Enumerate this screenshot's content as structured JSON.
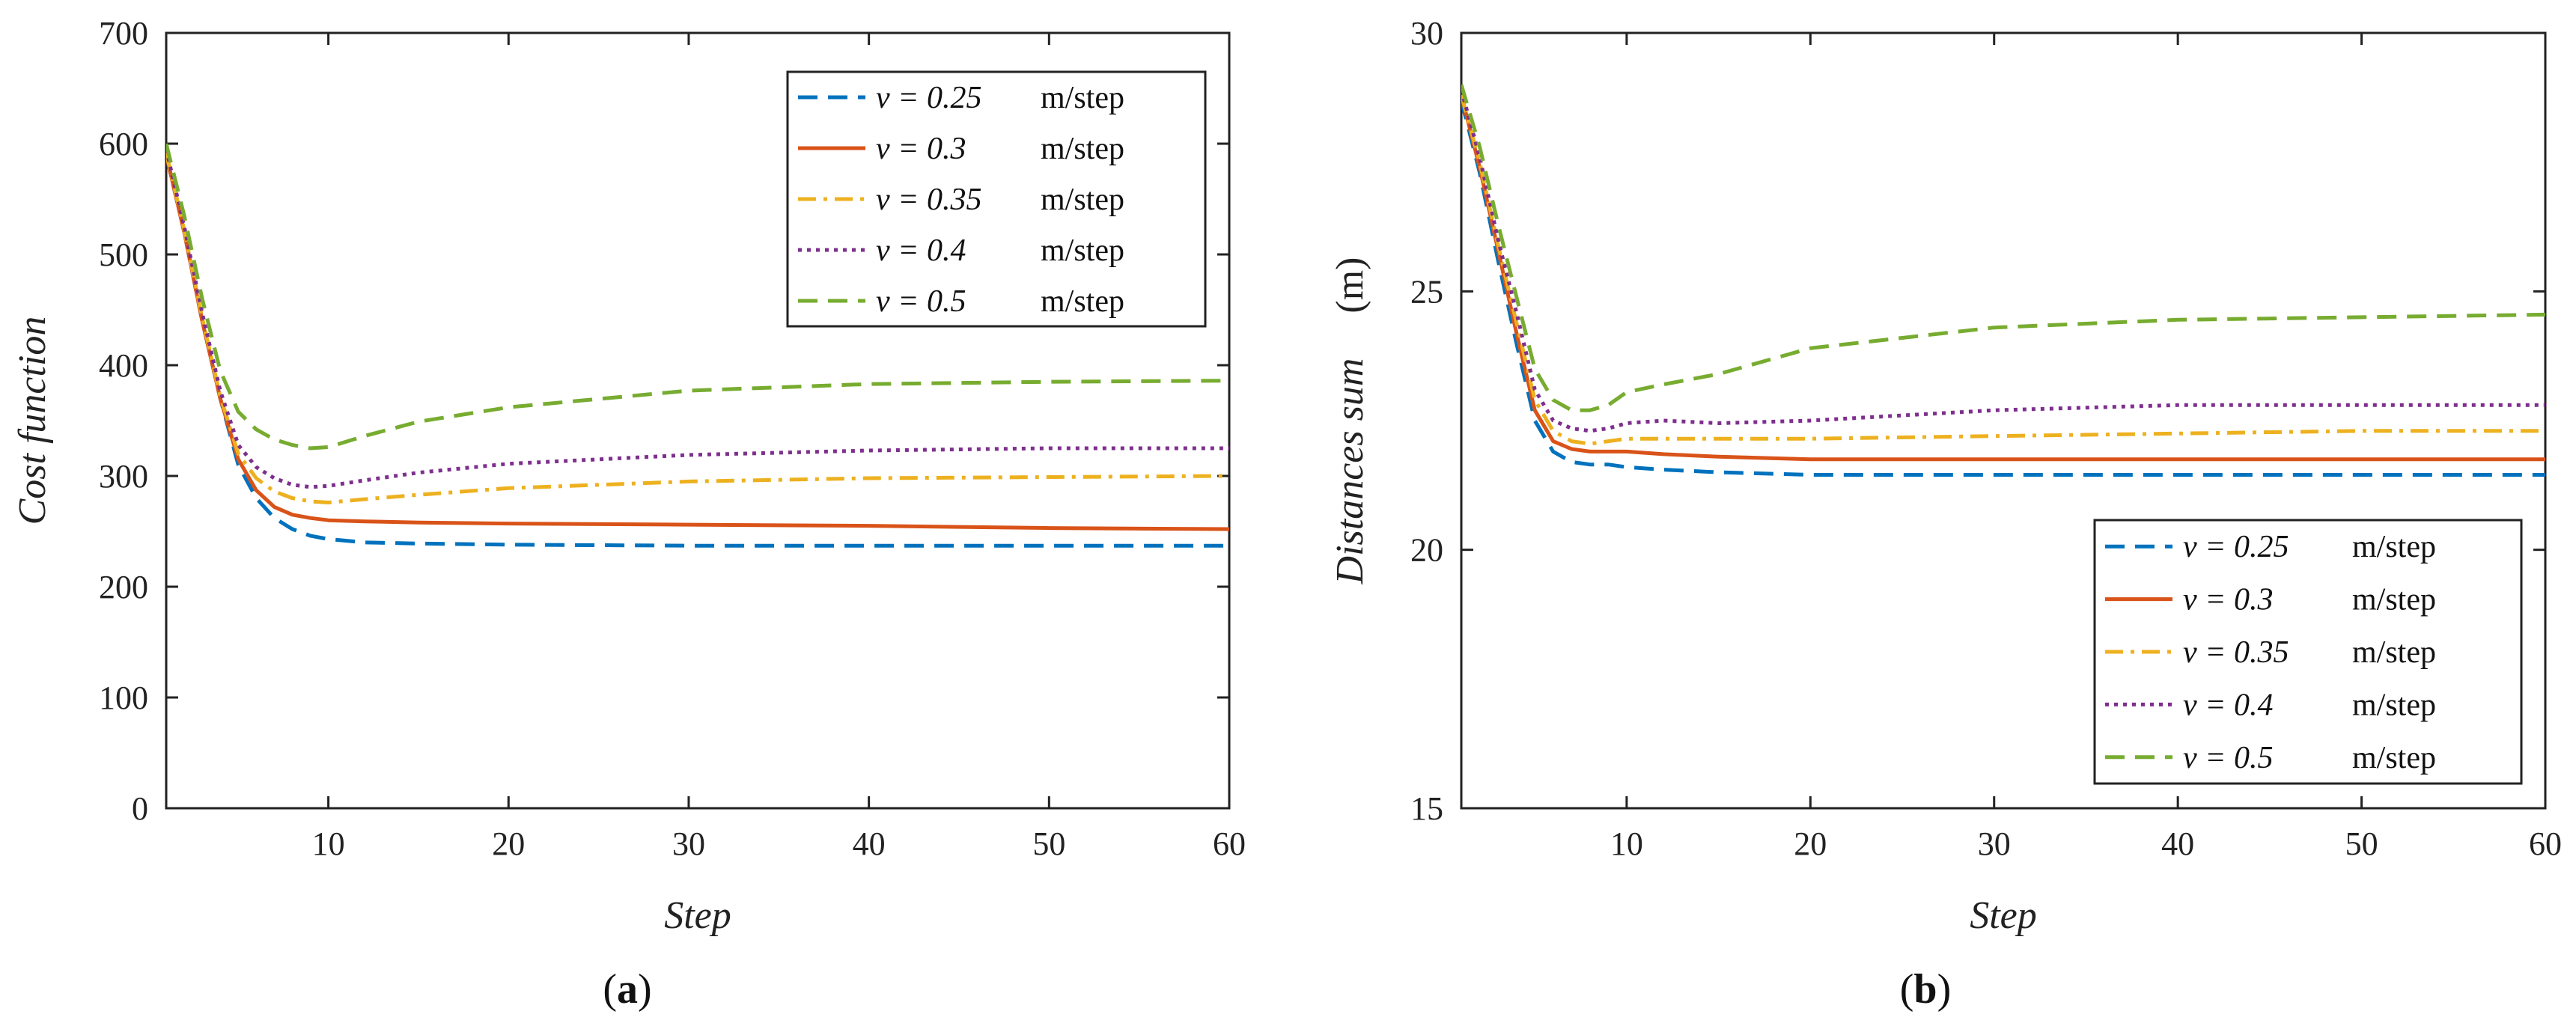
{
  "chart_data": [
    {
      "type": "line",
      "panel": "a",
      "caption": {
        "open": "(",
        "letter": "a",
        "close": ")"
      },
      "xlabel": "Step",
      "ylabel": "Cost function",
      "ylabel_unit": "",
      "xlim": [
        1,
        60
      ],
      "ylim": [
        0,
        700
      ],
      "xticks": [
        10,
        20,
        30,
        40,
        50,
        60
      ],
      "yticks": [
        0,
        100,
        200,
        300,
        400,
        500,
        600,
        700
      ],
      "legend_position": "top-right",
      "series": [
        {
          "name": "v = 0.25",
          "unit": "m/step",
          "color": "#0072BD",
          "dash": "dashed",
          "x": [
            1,
            2,
            3,
            4,
            5,
            6,
            7,
            8,
            9,
            10,
            12,
            15,
            20,
            30,
            40,
            50,
            60
          ],
          "y": [
            590,
            520,
            440,
            370,
            310,
            280,
            262,
            252,
            246,
            243,
            240,
            239,
            238,
            237,
            237,
            237,
            237
          ]
        },
        {
          "name": "v = 0.3",
          "unit": "m/step",
          "color": "#D95319",
          "dash": "solid",
          "x": [
            1,
            2,
            3,
            4,
            5,
            6,
            7,
            8,
            9,
            10,
            12,
            15,
            20,
            30,
            40,
            50,
            60
          ],
          "y": [
            590,
            520,
            440,
            370,
            315,
            287,
            272,
            265,
            262,
            260,
            259,
            258,
            257,
            256,
            255,
            253,
            252
          ]
        },
        {
          "name": "v = 0.35",
          "unit": "m/step",
          "color": "#EDB120",
          "dash": "dashdot",
          "x": [
            1,
            2,
            3,
            4,
            5,
            6,
            7,
            8,
            9,
            10,
            12,
            15,
            20,
            30,
            40,
            50,
            60
          ],
          "y": [
            592,
            522,
            443,
            372,
            320,
            298,
            286,
            280,
            277,
            276,
            279,
            283,
            289,
            295,
            298,
            299,
            300
          ]
        },
        {
          "name": "v = 0.4",
          "unit": "m/step",
          "color": "#7E2F8E",
          "dash": "dotted",
          "x": [
            1,
            2,
            3,
            4,
            5,
            6,
            7,
            8,
            9,
            10,
            12,
            15,
            20,
            30,
            40,
            50,
            60
          ],
          "y": [
            595,
            525,
            447,
            377,
            328,
            308,
            298,
            292,
            290,
            291,
            296,
            303,
            311,
            319,
            323,
            325,
            325
          ]
        },
        {
          "name": "v = 0.5",
          "unit": "m/step",
          "color": "#77AC30",
          "dash": "dashed",
          "x": [
            1,
            2,
            3,
            4,
            5,
            6,
            7,
            8,
            9,
            10,
            12,
            15,
            20,
            30,
            40,
            50,
            60
          ],
          "y": [
            600,
            535,
            460,
            395,
            358,
            342,
            333,
            328,
            325,
            326,
            336,
            349,
            362,
            377,
            383,
            385,
            386
          ]
        }
      ]
    },
    {
      "type": "line",
      "panel": "b",
      "caption": {
        "open": "(",
        "letter": "b",
        "close": ")"
      },
      "xlabel": "Step",
      "ylabel": "Distances sum",
      "ylabel_unit": "(m)",
      "xlim": [
        1,
        60
      ],
      "ylim": [
        15,
        30
      ],
      "xticks": [
        10,
        20,
        30,
        40,
        50,
        60
      ],
      "yticks": [
        15,
        20,
        25,
        30
      ],
      "legend_position": "bottom-right",
      "series": [
        {
          "name": "v = 0.25",
          "unit": "m/step",
          "color": "#0072BD",
          "dash": "dashed",
          "x": [
            1,
            2,
            3,
            4,
            5,
            6,
            7,
            8,
            9,
            10,
            12,
            15,
            20,
            30,
            40,
            50,
            60
          ],
          "y": [
            28.7,
            27.3,
            25.6,
            24.0,
            22.5,
            21.9,
            21.7,
            21.65,
            21.65,
            21.6,
            21.55,
            21.5,
            21.45,
            21.45,
            21.45,
            21.45,
            21.45
          ]
        },
        {
          "name": "v = 0.3",
          "unit": "m/step",
          "color": "#D95319",
          "dash": "solid",
          "x": [
            1,
            2,
            3,
            4,
            5,
            6,
            7,
            8,
            9,
            10,
            12,
            15,
            20,
            30,
            40,
            50,
            60
          ],
          "y": [
            28.8,
            27.4,
            25.8,
            24.2,
            22.7,
            22.1,
            21.95,
            21.9,
            21.9,
            21.9,
            21.85,
            21.8,
            21.75,
            21.75,
            21.75,
            21.75,
            21.75
          ]
        },
        {
          "name": "v = 0.35",
          "unit": "m/step",
          "color": "#EDB120",
          "dash": "dashdot",
          "x": [
            1,
            2,
            3,
            4,
            5,
            6,
            7,
            8,
            9,
            10,
            12,
            15,
            20,
            30,
            40,
            50,
            60
          ],
          "y": [
            28.8,
            27.5,
            25.9,
            24.4,
            22.9,
            22.3,
            22.1,
            22.05,
            22.1,
            22.15,
            22.15,
            22.15,
            22.15,
            22.2,
            22.25,
            22.3,
            22.3
          ]
        },
        {
          "name": "v = 0.4",
          "unit": "m/step",
          "color": "#7E2F8E",
          "dash": "dotted",
          "x": [
            1,
            2,
            3,
            4,
            5,
            6,
            7,
            8,
            9,
            10,
            12,
            15,
            20,
            30,
            40,
            50,
            60
          ],
          "y": [
            28.9,
            27.6,
            26.0,
            24.6,
            23.1,
            22.5,
            22.35,
            22.3,
            22.35,
            22.45,
            22.5,
            22.45,
            22.5,
            22.7,
            22.8,
            22.8,
            22.8
          ]
        },
        {
          "name": "v = 0.5",
          "unit": "m/step",
          "color": "#77AC30",
          "dash": "dashed",
          "x": [
            1,
            2,
            3,
            4,
            5,
            6,
            7,
            8,
            9,
            10,
            12,
            15,
            20,
            30,
            40,
            50,
            60
          ],
          "y": [
            29.0,
            27.8,
            26.3,
            24.9,
            23.5,
            22.9,
            22.7,
            22.7,
            22.8,
            23.05,
            23.2,
            23.4,
            23.9,
            24.3,
            24.45,
            24.5,
            24.55
          ]
        }
      ]
    }
  ]
}
